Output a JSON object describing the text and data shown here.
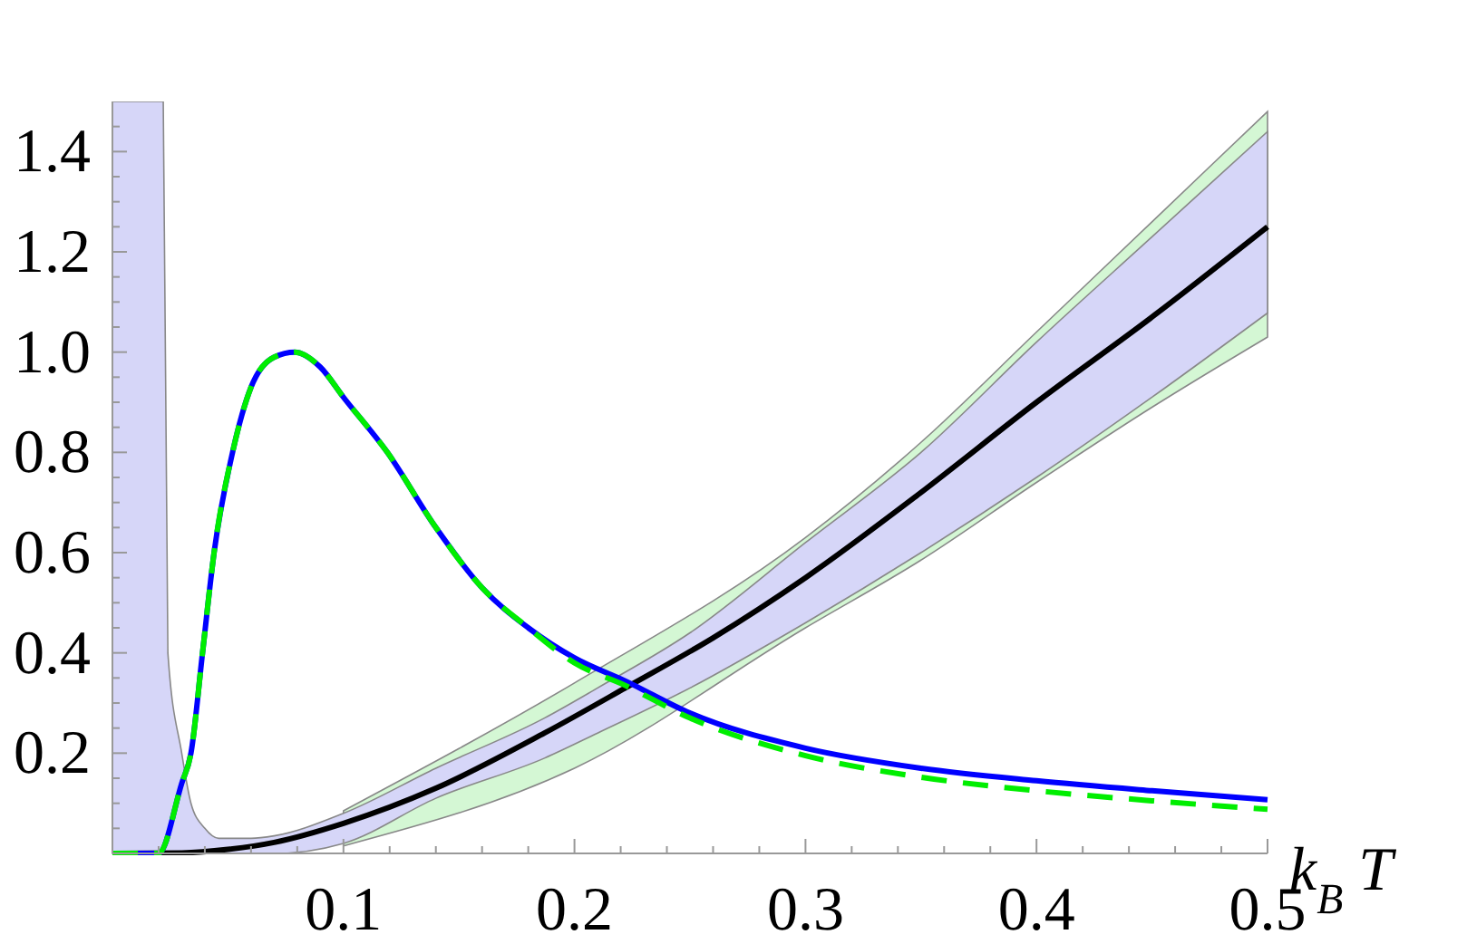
{
  "chart_data": {
    "type": "line",
    "xlabel": "k$_{B}$ T",
    "xlim": [
      0,
      0.5
    ],
    "ylim": [
      0,
      1.5
    ],
    "xticks": [
      {
        "value": 0.02,
        "label": null
      },
      {
        "value": 0.04,
        "label": null
      },
      {
        "value": 0.06,
        "label": null
      },
      {
        "value": 0.08,
        "label": null
      },
      0.1,
      {
        "value": 0.12,
        "label": null
      },
      {
        "value": 0.14,
        "label": null
      },
      {
        "value": 0.16,
        "label": null
      },
      {
        "value": 0.18,
        "label": null
      },
      0.2,
      {
        "value": 0.22,
        "label": null
      },
      {
        "value": 0.24,
        "label": null
      },
      {
        "value": 0.26,
        "label": null
      },
      {
        "value": 0.28,
        "label": null
      },
      0.3,
      {
        "value": 0.32,
        "label": null
      },
      {
        "value": 0.34,
        "label": null
      },
      {
        "value": 0.36,
        "label": null
      },
      {
        "value": 0.38,
        "label": null
      },
      0.4,
      {
        "value": 0.42,
        "label": null
      },
      {
        "value": 0.44,
        "label": null
      },
      {
        "value": 0.46,
        "label": null
      },
      {
        "value": 0.48,
        "label": null
      },
      0.5
    ],
    "yticks": [
      {
        "value": 0.05,
        "label": null
      },
      {
        "value": 0.1,
        "label": null
      },
      {
        "value": 0.15,
        "label": null
      },
      0.2,
      {
        "value": 0.25,
        "label": null
      },
      {
        "value": 0.3,
        "label": null
      },
      {
        "value": 0.35,
        "label": null
      },
      0.4,
      {
        "value": 0.45,
        "label": null
      },
      {
        "value": 0.5,
        "label": null
      },
      {
        "value": 0.55,
        "label": null
      },
      0.6,
      {
        "value": 0.65,
        "label": null
      },
      {
        "value": 0.7,
        "label": null
      },
      {
        "value": 0.75,
        "label": null
      },
      0.8,
      {
        "value": 0.85,
        "label": null
      },
      {
        "value": 0.9,
        "label": null
      },
      {
        "value": 0.95,
        "label": null
      },
      {
        "value": 1,
        "label": "1.0"
      },
      {
        "value": 1.05,
        "label": null
      },
      {
        "value": 1.1,
        "label": null
      },
      {
        "value": 1.15,
        "label": null
      },
      1.2,
      {
        "value": 1.25,
        "label": null
      },
      {
        "value": 1.3,
        "label": null
      },
      {
        "value": 1.35,
        "label": null
      },
      1.4,
      {
        "value": 1.45,
        "label": null
      }
    ],
    "grid": false,
    "marker": "none",
    "series": [
      {
        "type": "area",
        "color": "#d4f7d4",
        "x": [
          0.1,
          0.2,
          0.3,
          0.35,
          0.4,
          0.45,
          0.5
        ],
        "values": [
          null,
          null,
          null,
          null,
          null,
          null,
          null
        ],
        "lower": [
          0.015,
          0.17,
          0.45,
          0.585,
          0.74,
          0.89,
          1.03
        ],
        "upper": [
          0.085,
          0.34,
          0.63,
          0.82,
          1.04,
          1.26,
          1.48
        ]
      },
      {
        "type": "area",
        "color": "#d6d6f8",
        "x": [
          0,
          0.02,
          0.022,
          0.024,
          0.03,
          0.034,
          0.04,
          0.046,
          0.06,
          0.07,
          0.1,
          0.14,
          0.187,
          0.21,
          0.25,
          0.3,
          0.35,
          0.4,
          0.45,
          0.5
        ],
        "values": [
          null,
          null,
          null,
          null,
          null,
          null,
          null,
          null,
          null,
          null,
          null,
          null,
          null,
          null,
          null,
          null,
          null,
          null,
          null,
          null
        ],
        "lower": [
          0,
          0,
          0,
          0,
          0,
          0,
          0,
          0,
          0,
          0,
          0.02,
          0.11,
          0.19,
          0.24,
          0.33,
          0.46,
          0.6,
          0.75,
          0.91,
          1.078
        ],
        "upper": [
          1.5,
          1.5,
          1.5,
          0.4,
          0.2,
          0.1,
          0.05,
          0.03,
          0.03,
          0.035,
          0.08,
          0.17,
          0.27,
          0.33,
          0.44,
          0.62,
          0.8,
          1.02,
          1.23,
          1.44
        ]
      },
      {
        "color": "#000000",
        "x": [
          0,
          0.03,
          0.05,
          0.07,
          0.1,
          0.14,
          0.187,
          0.222,
          0.26,
          0.3,
          0.35,
          0.4,
          0.45,
          0.5
        ],
        "values": [
          0,
          0.001,
          0.008,
          0.022,
          0.06,
          0.13,
          0.24,
          0.33,
          0.43,
          0.55,
          0.72,
          0.9,
          1.07,
          1.25
        ]
      },
      {
        "color": "#0000ff",
        "x": [
          0,
          0.02,
          0.03,
          0.034,
          0.039,
          0.044,
          0.052,
          0.06,
          0.07,
          0.079,
          0.09,
          0.1,
          0.119,
          0.14,
          0.16,
          0.18,
          0.2,
          0.222,
          0.25,
          0.3,
          0.35,
          0.4,
          0.45,
          0.5
        ],
        "values": [
          0,
          0,
          0.14,
          0.2,
          0.4,
          0.6,
          0.8,
          0.93,
          0.99,
          1.0,
          0.97,
          0.91,
          0.8,
          0.65,
          0.53,
          0.45,
          0.39,
          0.344,
          0.28,
          0.21,
          0.17,
          0.145,
          0.125,
          0.107
        ]
      },
      {
        "color": "#00ee00",
        "line_style": "dashed",
        "x": [
          0,
          0.02,
          0.03,
          0.034,
          0.039,
          0.044,
          0.052,
          0.06,
          0.07,
          0.079,
          0.09,
          0.1,
          0.119,
          0.14,
          0.16,
          0.18,
          0.2,
          0.222,
          0.25,
          0.3,
          0.35,
          0.4,
          0.45,
          0.5
        ],
        "values": [
          0,
          0,
          0.14,
          0.2,
          0.4,
          0.6,
          0.8,
          0.93,
          0.99,
          1.0,
          0.97,
          0.91,
          0.8,
          0.65,
          0.53,
          0.45,
          0.38,
          0.335,
          0.27,
          0.195,
          0.152,
          0.125,
          0.105,
          0.088
        ]
      }
    ]
  }
}
